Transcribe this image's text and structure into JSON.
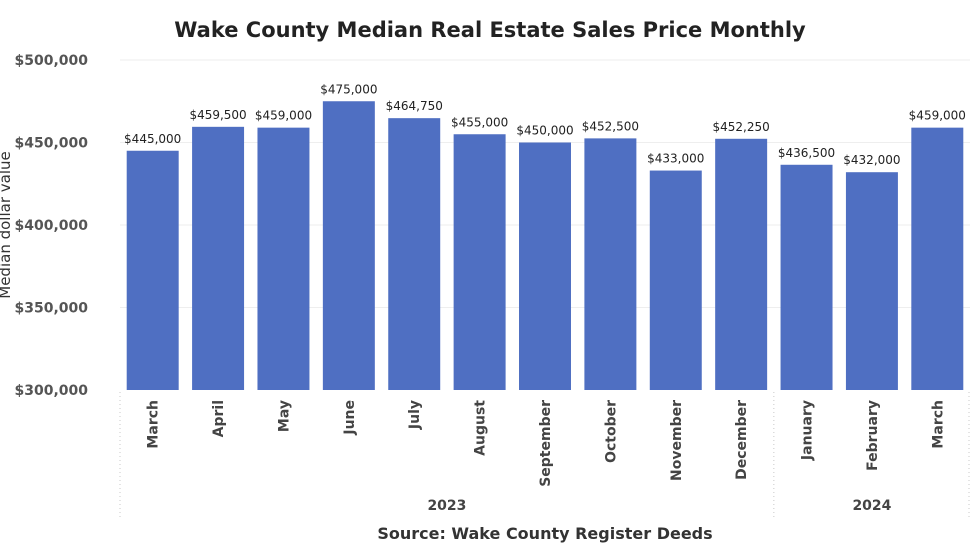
{
  "chart_data": {
    "type": "bar",
    "title": "Wake County Median Real Estate Sales Price Monthly",
    "ylabel": "Median dollar value",
    "xlabel": "Source: Wake County Register Deeds",
    "ylim": [
      300000,
      500000
    ],
    "yticks": [
      {
        "value": 300000,
        "label": "$300,000"
      },
      {
        "value": 350000,
        "label": "$350,000"
      },
      {
        "value": 400000,
        "label": "$400,000"
      },
      {
        "value": 450000,
        "label": "$450,000"
      },
      {
        "value": 500000,
        "label": "$500,000"
      }
    ],
    "categories": [
      "March",
      "April",
      "May",
      "June",
      "July",
      "August",
      "September",
      "October",
      "November",
      "December",
      "January",
      "February",
      "March"
    ],
    "years": [
      {
        "label": "2023",
        "from": 0,
        "to": 9
      },
      {
        "label": "2024",
        "from": 10,
        "to": 12
      }
    ],
    "values": [
      445000,
      459500,
      459000,
      475000,
      464750,
      455000,
      450000,
      452500,
      433000,
      452250,
      436500,
      432000,
      459000
    ],
    "value_labels": [
      "$445,000",
      "$459,500",
      "$459,000",
      "$475,000",
      "$464,750",
      "$455,000",
      "$450,000",
      "$452,500",
      "$433,000",
      "$452,250",
      "$436,500",
      "$432,000",
      "$459,000"
    ],
    "grid": true,
    "legend": "none",
    "bar_color": "#4F6FC2"
  }
}
